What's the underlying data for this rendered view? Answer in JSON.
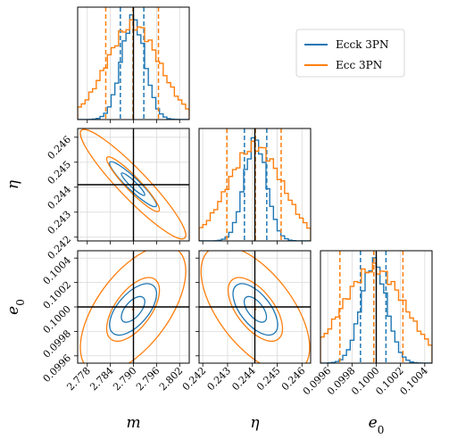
{
  "chart_data": {
    "type": "corner",
    "parameters": [
      {
        "key": "m",
        "label": "m",
        "truth": 2.79,
        "range": [
          2.7755,
          2.8045
        ],
        "ticks": [
          "2.778",
          "2.784",
          "2.790",
          "2.796",
          "2.802"
        ]
      },
      {
        "key": "eta",
        "label": "η",
        "truth": 0.2441,
        "range": [
          0.24185,
          0.24635
        ],
        "ticks": [
          "0.242",
          "0.243",
          "0.244",
          "0.245",
          "0.246"
        ]
      },
      {
        "key": "e0",
        "label": "e",
        "label_sub": "0",
        "truth": 0.1,
        "range": [
          0.09954,
          0.10046
        ],
        "ticks": [
          "0.0996",
          "0.0998",
          "0.1000",
          "0.1002",
          "0.1004"
        ]
      }
    ],
    "series": [
      {
        "name": "Ecck 3PN",
        "color": "#1f77b4",
        "quantiles": {
          "m": [
            2.7866,
            2.7899,
            2.7927
          ],
          "eta": [
            0.24368,
            0.24412,
            0.24458
          ],
          "e0": [
            0.09987,
            0.09998,
            0.10008
          ]
        }
      },
      {
        "name": "Ecc 3PN",
        "color": "#ff7f0e",
        "quantiles": {
          "m": [
            2.7828,
            2.7899,
            2.7965
          ],
          "eta": [
            0.24297,
            0.24412,
            0.24516
          ],
          "e0": [
            0.0997,
            0.09998,
            0.10022
          ]
        }
      }
    ],
    "legend_position": "top-right",
    "grid": true
  }
}
